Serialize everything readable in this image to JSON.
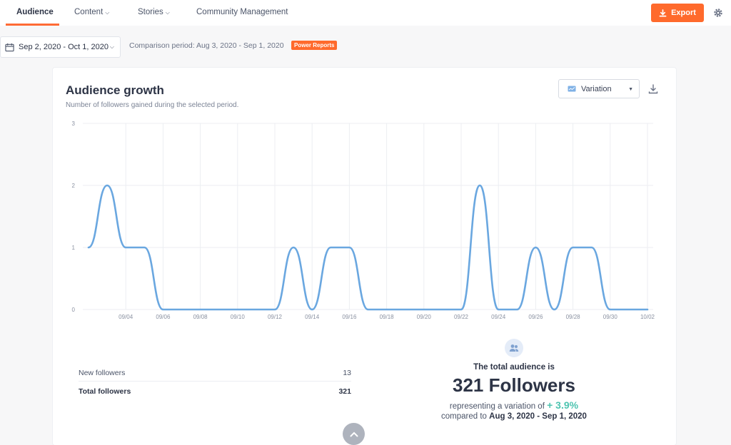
{
  "nav": {
    "tabs": [
      {
        "label": "Audience",
        "active": true
      },
      {
        "label": "Content"
      },
      {
        "label": "Stories"
      },
      {
        "label": "Community Management"
      }
    ],
    "export_label": "Export",
    "accent": "#ff6a2c"
  },
  "filters": {
    "date_range": "Sep 2, 2020 - Oct 1, 2020",
    "comparison": "Comparison period: Aug 3, 2020 - Sep 1, 2020",
    "badge": "Power Reports"
  },
  "card": {
    "title": "Audience growth",
    "subtitle": "Number of followers gained during the selected period.",
    "view_select": "Variation"
  },
  "chart_data": {
    "type": "line",
    "x": [
      "09/02",
      "09/03",
      "09/04",
      "09/05",
      "09/06",
      "09/07",
      "09/08",
      "09/09",
      "09/10",
      "09/11",
      "09/12",
      "09/13",
      "09/14",
      "09/15",
      "09/16",
      "09/17",
      "09/18",
      "09/19",
      "09/20",
      "09/21",
      "09/22",
      "09/23",
      "09/24",
      "09/25",
      "09/26",
      "09/27",
      "09/28",
      "09/29",
      "09/30",
      "10/01",
      "10/02"
    ],
    "values": [
      1,
      2,
      1,
      1,
      0,
      0,
      0,
      0,
      0,
      0,
      0,
      1,
      0,
      1,
      1,
      0,
      0,
      0,
      0,
      0,
      0,
      2,
      0,
      0,
      1,
      0,
      1,
      1,
      0,
      0,
      0
    ],
    "x_ticks": [
      "09/04",
      "09/06",
      "09/08",
      "09/10",
      "09/12",
      "09/14",
      "09/16",
      "09/18",
      "09/20",
      "09/22",
      "09/24",
      "09/26",
      "09/28",
      "09/30",
      "10/02"
    ],
    "y_ticks": [
      "0",
      "1",
      "2",
      "3"
    ],
    "ylim": [
      0,
      3
    ],
    "grid": true,
    "color": "#6aa7e0"
  },
  "stats": {
    "new_label": "New followers",
    "new_value": "13",
    "total_label": "Total followers",
    "total_value": "321"
  },
  "audience": {
    "lead": "The total audience is",
    "big": "321 Followers",
    "variation_prefix": "representing a variation of ",
    "variation_value": "+ 3.9%",
    "compared_prefix": "compared to ",
    "compared_range": "Aug 3, 2020 - Sep 1, 2020"
  }
}
